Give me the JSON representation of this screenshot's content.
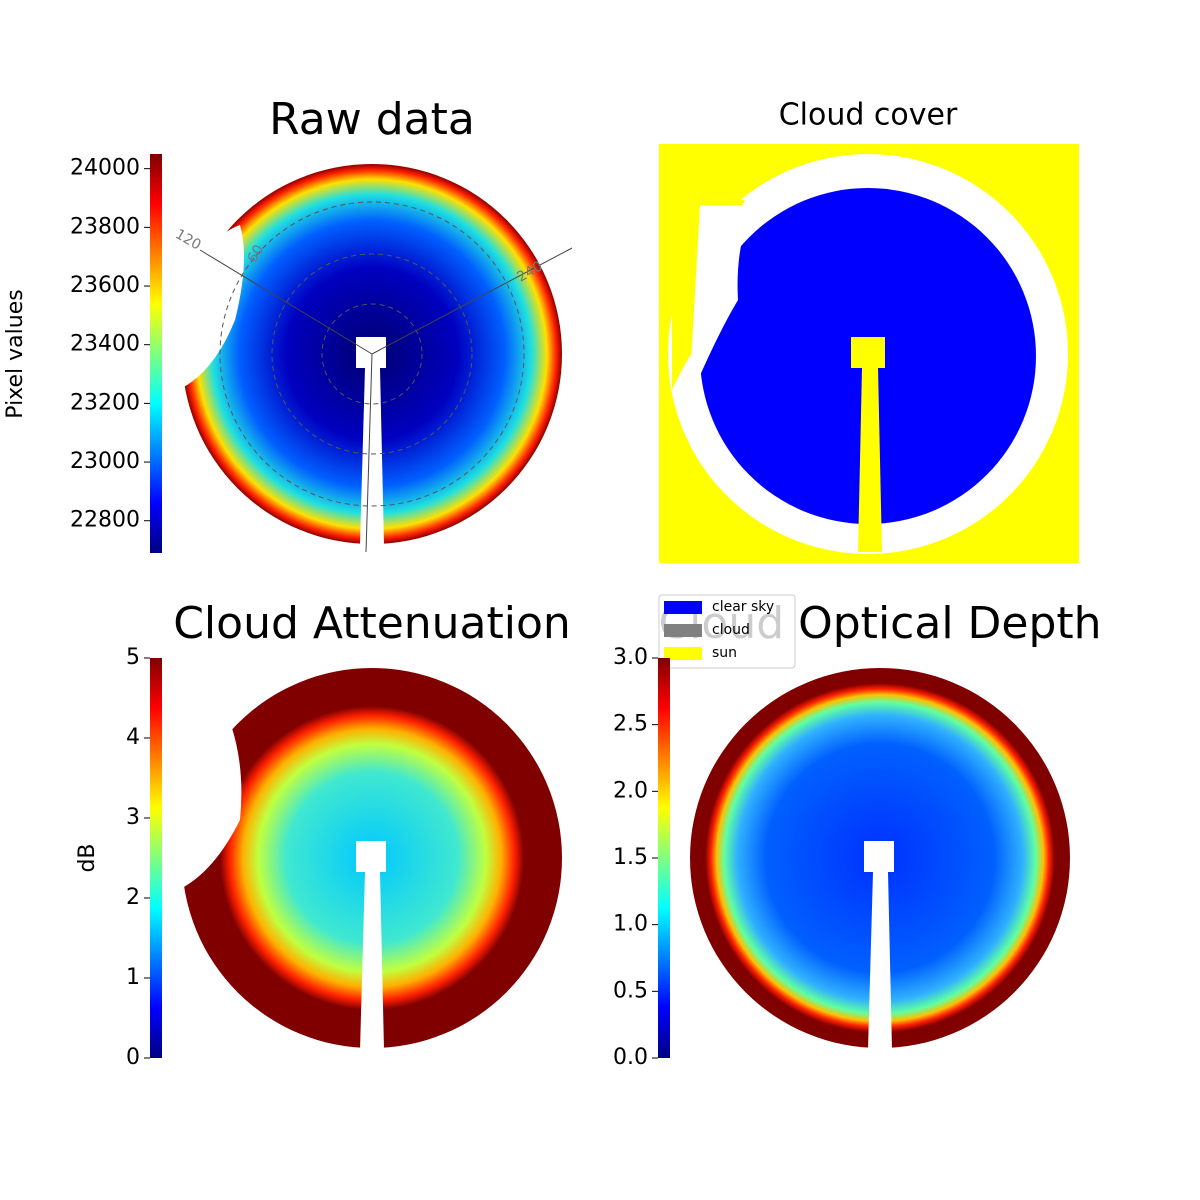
{
  "chart_data": [
    {
      "type": "heatmap",
      "title": "Raw data",
      "colorbar_label": "Pixel values",
      "colormap": "jet",
      "ylim": [
        22690,
        24050
      ],
      "yticks": [
        22800,
        23000,
        23200,
        23400,
        23600,
        23800,
        24000
      ],
      "annotations": [
        "120",
        "60",
        "240"
      ]
    },
    {
      "type": "classmap",
      "title": "Cloud cover",
      "classes": [
        {
          "name": "clear sky",
          "color": "#0000ff"
        },
        {
          "name": "cloud",
          "color": "#808080"
        },
        {
          "name": "sun",
          "color": "#ffff00"
        }
      ]
    },
    {
      "type": "heatmap",
      "title": "Cloud Attenuation",
      "colorbar_label": "dB",
      "colormap": "jet",
      "ylim": [
        0,
        5
      ],
      "yticks": [
        0,
        1,
        2,
        3,
        4,
        5
      ]
    },
    {
      "type": "heatmap",
      "title": "Cloud Optical Depth",
      "colormap": "jet",
      "ylim": [
        0,
        3
      ],
      "yticks": [
        {
          "value": 0,
          "label": "0.0"
        },
        0.5,
        {
          "value": 1,
          "label": "1.0"
        },
        1.5,
        {
          "value": 2,
          "label": "2.0"
        },
        2.5,
        {
          "value": 3,
          "label": "3.0"
        }
      ]
    }
  ]
}
